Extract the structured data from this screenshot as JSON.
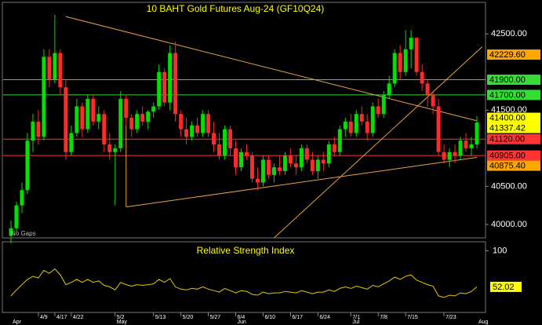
{
  "chart_data": {
    "type": "candlestick",
    "title": "10 BAHT Gold Futures Aug-24 (GF10Q24)",
    "note": "No Gaps",
    "categories": [
      null,
      null,
      null,
      null,
      null,
      "4/9",
      null,
      null,
      "4/17",
      null,
      null,
      "4/22",
      null,
      null,
      null,
      null,
      null,
      null,
      null,
      "5/2",
      null,
      null,
      null,
      null,
      null,
      null,
      "5/13",
      null,
      null,
      null,
      null,
      "5/20",
      null,
      null,
      null,
      null,
      "5/27",
      null,
      null,
      null,
      null,
      "6/4",
      null,
      null,
      null,
      null,
      "6/10",
      null,
      null,
      null,
      null,
      "6/17",
      null,
      null,
      null,
      null,
      "6/24",
      null,
      null,
      null,
      null,
      null,
      "7/1",
      null,
      null,
      null,
      null,
      "7/8",
      null,
      null,
      null,
      null,
      "7/15",
      null,
      null,
      null,
      null,
      null,
      null,
      "7/23",
      null,
      null,
      null,
      null,
      null,
      null
    ],
    "months": [
      "Apr",
      null,
      null,
      null,
      null,
      null,
      null,
      null,
      null,
      null,
      null,
      null,
      null,
      null,
      null,
      null,
      null,
      null,
      null,
      "May",
      null,
      null,
      null,
      null,
      null,
      null,
      null,
      null,
      null,
      null,
      null,
      null,
      null,
      null,
      null,
      null,
      null,
      null,
      null,
      null,
      null,
      "Jun",
      null,
      null,
      null,
      null,
      null,
      null,
      null,
      null,
      null,
      null,
      null,
      null,
      null,
      null,
      null,
      null,
      null,
      null,
      null,
      null,
      "Jul",
      null,
      null,
      null,
      null,
      null,
      null,
      null,
      null,
      null,
      null,
      null,
      null,
      null,
      null,
      null,
      null,
      null,
      null,
      null,
      null,
      null,
      null,
      "Aug"
    ],
    "open": [
      39850,
      39950,
      40250,
      40450,
      41100,
      41350,
      41150,
      42200,
      41900,
      42250,
      41800,
      40950,
      41200,
      41550,
      41250,
      41650,
      41350,
      41450,
      41050,
      40950,
      41000,
      41650,
      41400,
      41250,
      41450,
      41350,
      41480,
      41550,
      42000,
      41600,
      42250,
      41450,
      41250,
      41150,
      41300,
      41200,
      41450,
      41200,
      41050,
      40900,
      41250,
      41000,
      40750,
      40950,
      40900,
      40600,
      40550,
      40850,
      40650,
      40750,
      40700,
      40900,
      40800,
      40750,
      41000,
      40850,
      40700,
      40850,
      40800,
      41050,
      40950,
      41250,
      41350,
      41200,
      41450,
      41350,
      41200,
      41550,
      41450,
      41700,
      41850,
      42250,
      42000,
      42300,
      42450,
      42000,
      41850,
      41700,
      41550,
      40950,
      40850,
      40950,
      40900,
      41100,
      41000,
      41050
    ],
    "high": [
      40050,
      40300,
      40550,
      41200,
      41450,
      41500,
      42300,
      42300,
      42750,
      42300,
      41900,
      41300,
      41650,
      41600,
      41700,
      41700,
      41550,
      41500,
      41200,
      41050,
      41750,
      41700,
      41450,
      41500,
      41550,
      41500,
      41600,
      42100,
      42050,
      42350,
      42400,
      41500,
      41400,
      41350,
      41400,
      41500,
      41500,
      41350,
      41200,
      41300,
      41300,
      41100,
      41000,
      41050,
      40950,
      40750,
      40900,
      40900,
      40800,
      40900,
      40950,
      41000,
      40900,
      41050,
      41050,
      40950,
      40900,
      40950,
      41100,
      41150,
      41300,
      41400,
      41450,
      41500,
      41550,
      41450,
      41600,
      41650,
      41750,
      41950,
      42300,
      42350,
      42550,
      42550,
      42450,
      42100,
      41900,
      41750,
      41650,
      41050,
      41000,
      41050,
      41150,
      41200,
      41150,
      41420
    ],
    "low": [
      39750,
      39900,
      40150,
      40400,
      40950,
      41050,
      41100,
      41800,
      41850,
      41700,
      40850,
      40900,
      41150,
      41150,
      41200,
      41300,
      41250,
      40950,
      40850,
      40250,
      40950,
      41300,
      41150,
      41200,
      41300,
      41250,
      41400,
      41500,
      41550,
      41500,
      41350,
      41150,
      41050,
      41100,
      41150,
      41150,
      41150,
      40950,
      40850,
      40850,
      40900,
      40650,
      40700,
      40850,
      40550,
      40450,
      40500,
      40600,
      40550,
      40650,
      40650,
      40750,
      40650,
      40700,
      40800,
      40650,
      40600,
      40700,
      40750,
      40900,
      40900,
      41150,
      41150,
      41150,
      41300,
      41100,
      41150,
      41400,
      41400,
      41650,
      41800,
      41900,
      41950,
      42050,
      41950,
      41750,
      41550,
      41450,
      40900,
      40800,
      40750,
      40800,
      40850,
      40950,
      40900,
      41000
    ],
    "close": [
      39950,
      40250,
      40450,
      41100,
      41350,
      41150,
      42200,
      41900,
      42250,
      41800,
      40950,
      41200,
      41550,
      41250,
      41650,
      41350,
      41450,
      41050,
      40950,
      41000,
      41650,
      41400,
      41250,
      41450,
      41350,
      41480,
      41550,
      42000,
      41600,
      42250,
      41450,
      41250,
      41150,
      41300,
      41200,
      41450,
      41200,
      41050,
      40900,
      41250,
      41000,
      40750,
      40950,
      40900,
      40600,
      40550,
      40850,
      40650,
      40750,
      40700,
      40900,
      40800,
      40750,
      41000,
      40850,
      40700,
      40850,
      40800,
      41050,
      40950,
      41250,
      41350,
      41200,
      41450,
      41350,
      41200,
      41550,
      41450,
      41700,
      41850,
      42250,
      42000,
      42300,
      42450,
      42000,
      41850,
      41700,
      41550,
      40950,
      40850,
      40950,
      40900,
      41100,
      41000,
      41050,
      41337.42
    ],
    "up_color": "#00e000",
    "down_color": "#ff2a2a",
    "ylim": [
      39824,
      42915
    ],
    "yticks": [
      {
        "value": 40000,
        "label": "40000.00"
      },
      {
        "value": 40500,
        "label": "40500.00"
      },
      {
        "value": 41500,
        "label": "41500.00"
      },
      {
        "value": 42500,
        "label": "42500.00"
      }
    ],
    "markers": [
      {
        "value": 42229.6,
        "label": "42229.60",
        "color": "#ffa500",
        "line": false
      },
      {
        "value": 41900,
        "label": "41900.00",
        "color": "#33dd33",
        "line": true
      },
      {
        "value": 41700,
        "label": "41700.00",
        "color": "#33dd33",
        "line": true
      },
      {
        "value": 41400,
        "label": "41400.00",
        "color": "#ffff00",
        "line": false
      },
      {
        "value": 41337.42,
        "label": "41337.42",
        "color": "#ffff00",
        "line": false
      },
      {
        "value": 41120,
        "label": "41120.00",
        "color": "#ff3333",
        "line": true
      },
      {
        "value": 40905,
        "label": "40905.00",
        "color": "#ff3333",
        "line": true
      },
      {
        "value": 40875.4,
        "label": "40875.40",
        "color": "#ffa500",
        "line": false
      }
    ],
    "trendlines": [
      {
        "x": [
          10,
          85
        ],
        "y": [
          42728,
          41360
        ],
        "color": "#e8a33c"
      },
      {
        "x": [
          21,
          21
        ],
        "y": [
          41300,
          40230
        ],
        "color": "#e8a33c"
      },
      {
        "x": [
          21,
          85
        ],
        "y": [
          40230,
          40880
        ],
        "color": "#e8a33c"
      },
      {
        "x": [
          48,
          86
        ],
        "y": [
          39824,
          42334
        ],
        "color": "#e8a33c"
      }
    ],
    "rsi": {
      "title": "Relative Strength Index",
      "color": "#e8c800",
      "values": [
        40,
        48,
        55,
        62,
        66,
        64,
        74,
        70,
        76,
        68,
        55,
        58,
        62,
        58,
        62,
        58,
        60,
        54,
        52,
        48,
        58,
        55,
        53,
        55,
        54,
        55,
        56,
        62,
        58,
        63,
        52,
        49,
        48,
        50,
        49,
        52,
        49,
        47,
        45,
        50,
        47,
        44,
        47,
        46,
        42,
        41,
        45,
        43,
        44,
        44,
        46,
        45,
        44,
        47,
        45,
        43,
        45,
        45,
        48,
        46,
        50,
        52,
        50,
        53,
        51,
        49,
        54,
        52,
        56,
        60,
        65,
        62,
        66,
        68,
        61,
        58,
        55,
        53,
        40,
        38,
        41,
        40,
        44,
        43,
        46,
        52.02
      ],
      "ylim": [
        18,
        112
      ],
      "yticks": [
        100
      ]
    }
  }
}
